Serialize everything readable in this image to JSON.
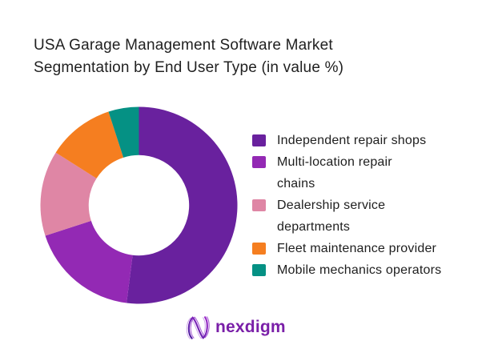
{
  "title": {
    "lines": [
      "USA Garage Management Software Market",
      "Segmentation by End User Type (in value %)"
    ]
  },
  "chart_data": {
    "type": "pie",
    "subtype": "donut",
    "title": "USA Garage Management Software Market Segmentation by End User Type (in value %)",
    "unit": "value %",
    "categories": [
      "Independent repair shops",
      "Multi-location repair chains",
      "Dealership service departments",
      "Fleet maintenance provider",
      "Mobile mechanics operators"
    ],
    "values": [
      52,
      18,
      14,
      11,
      5
    ],
    "colors": [
      "#69219e",
      "#9329b4",
      "#df86a5",
      "#f57e20",
      "#059184"
    ],
    "start_angle_deg": 0,
    "direction": "clockwise",
    "inner_radius_ratio": 0.51,
    "legend_position": "right",
    "data_labels": false
  },
  "legend": {
    "items": [
      {
        "lines": [
          "Independent repair shops"
        ],
        "color": "#69219e"
      },
      {
        "lines": [
          "Multi-location repair",
          "chains"
        ],
        "color": "#9329b4"
      },
      {
        "lines": [
          "Dealership service",
          "departments"
        ],
        "color": "#df86a5"
      },
      {
        "lines": [
          "Fleet maintenance provider"
        ],
        "color": "#f57e20"
      },
      {
        "lines": [
          "Mobile mechanics operators"
        ],
        "color": "#059184"
      }
    ]
  },
  "logo": {
    "wordmark": "nexdigm",
    "brand_color": "#7a1fa8",
    "icon": "nexdigm-wave-n-icon"
  }
}
